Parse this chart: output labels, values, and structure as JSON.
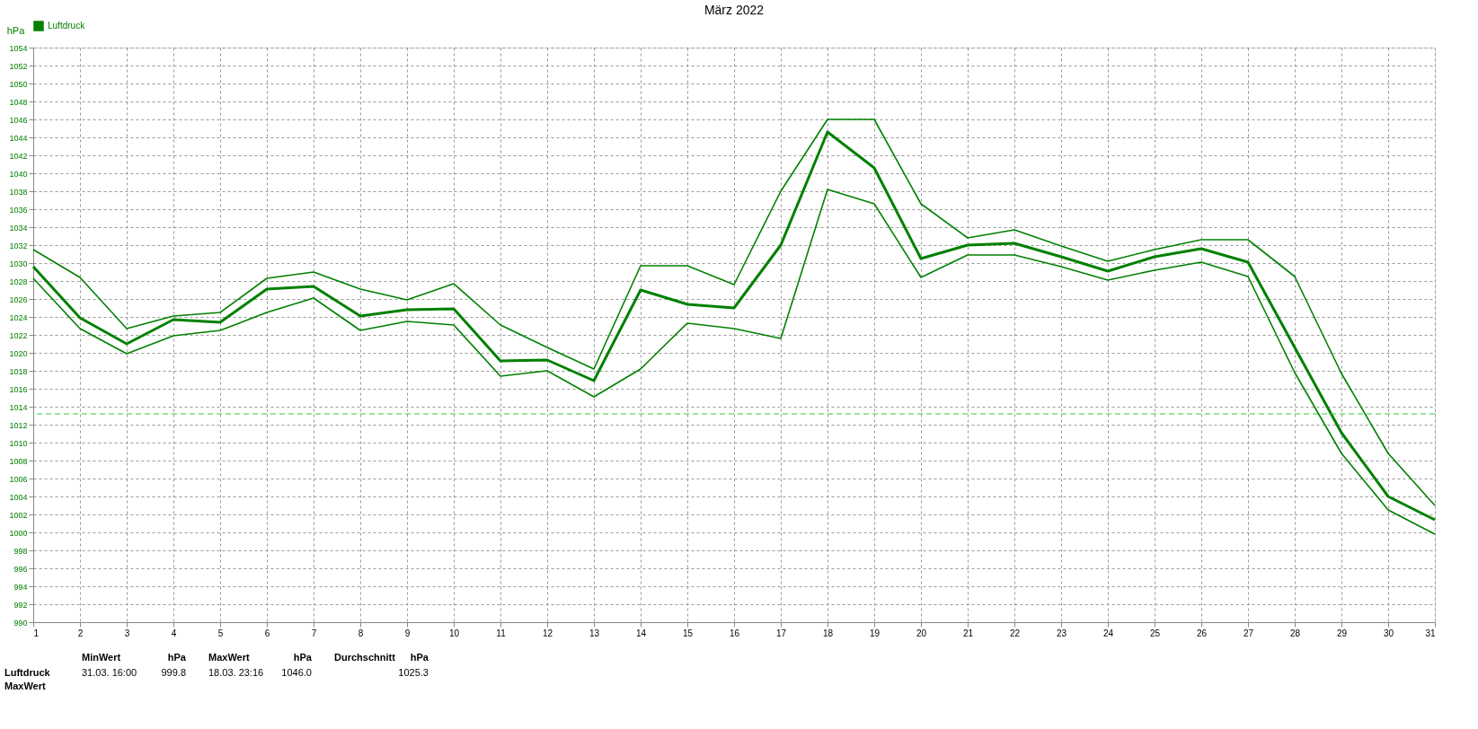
{
  "chart_data": {
    "type": "line",
    "title": "März 2022",
    "ylabel": "hPa",
    "x": [
      1,
      2,
      3,
      4,
      5,
      6,
      7,
      8,
      9,
      10,
      11,
      12,
      13,
      14,
      15,
      16,
      17,
      18,
      19,
      20,
      21,
      22,
      23,
      24,
      25,
      26,
      27,
      28,
      29,
      30,
      31
    ],
    "series": [
      {
        "name": "Luftdruck",
        "color": "#008000",
        "values": [
          1029.6,
          1023.9,
          1021.0,
          1023.7,
          1023.4,
          1027.1,
          1027.4,
          1024.1,
          1024.8,
          1024.9,
          1019.1,
          1019.2,
          1016.9,
          1027.0,
          1025.4,
          1025.0,
          1032.0,
          1044.6,
          1040.6,
          1030.5,
          1032.0,
          1032.2,
          1030.7,
          1029.1,
          1030.7,
          1031.6,
          1030.1,
          1020.6,
          1011.1,
          1004.0,
          1001.4
        ]
      },
      {
        "color": "#008000",
        "values": [
          1031.5,
          1028.4,
          1022.7,
          1024.1,
          1024.5,
          1028.3,
          1029.0,
          1027.1,
          1025.9,
          1027.7,
          1023.1,
          1020.6,
          1018.2,
          1029.7,
          1029.7,
          1027.6,
          1038.0,
          1046.0,
          1046.0,
          1036.6,
          1032.8,
          1033.7,
          1031.9,
          1030.2,
          1031.5,
          1032.6,
          1032.6,
          1028.5,
          1017.7,
          1008.8,
          1003.0
        ]
      },
      {
        "color": "#008000",
        "values": [
          1028.3,
          1022.7,
          1019.9,
          1021.9,
          1022.5,
          1024.5,
          1026.1,
          1022.5,
          1023.5,
          1023.1,
          1017.4,
          1018.0,
          1015.1,
          1018.2,
          1023.3,
          1022.7,
          1021.6,
          1038.2,
          1036.6,
          1028.4,
          1030.9,
          1030.9,
          1029.6,
          1028.1,
          1029.2,
          1030.1,
          1028.5,
          1017.8,
          1008.8,
          1002.5,
          999.8
        ]
      }
    ],
    "xlim": [
      1,
      31
    ],
    "xticks": [
      1,
      2,
      3,
      4,
      5,
      6,
      7,
      8,
      9,
      10,
      11,
      12,
      13,
      14,
      15,
      16,
      17,
      18,
      19,
      20,
      21,
      22,
      23,
      24,
      25,
      26,
      27,
      28,
      29,
      30,
      31
    ],
    "ylim": [
      990,
      1054
    ],
    "yticks": [
      990,
      992,
      994,
      996,
      998,
      1000,
      1002,
      1004,
      1006,
      1008,
      1010,
      1012,
      1014,
      1016,
      1018,
      1020,
      1022,
      1024,
      1026,
      1028,
      1030,
      1032,
      1034,
      1036,
      1038,
      1040,
      1042,
      1044,
      1046,
      1048,
      1050,
      1052,
      1054
    ],
    "ref_lines": [
      {
        "axis": "y",
        "value": 1013.2,
        "color": "#33cc33",
        "line_style": "dashed"
      }
    ],
    "grid": true,
    "legend": "top left",
    "line_style": "solid",
    "marker": "none",
    "annotations": [
      "Luftdruck",
      "MaxWert",
      "MinWert",
      "hPa",
      "31.03. 16:00",
      "999.8",
      "MaxWert",
      "hPa",
      "18.03. 23:16",
      "1046.0",
      "Durchschnitt",
      "hPa",
      "1025.3"
    ]
  }
}
